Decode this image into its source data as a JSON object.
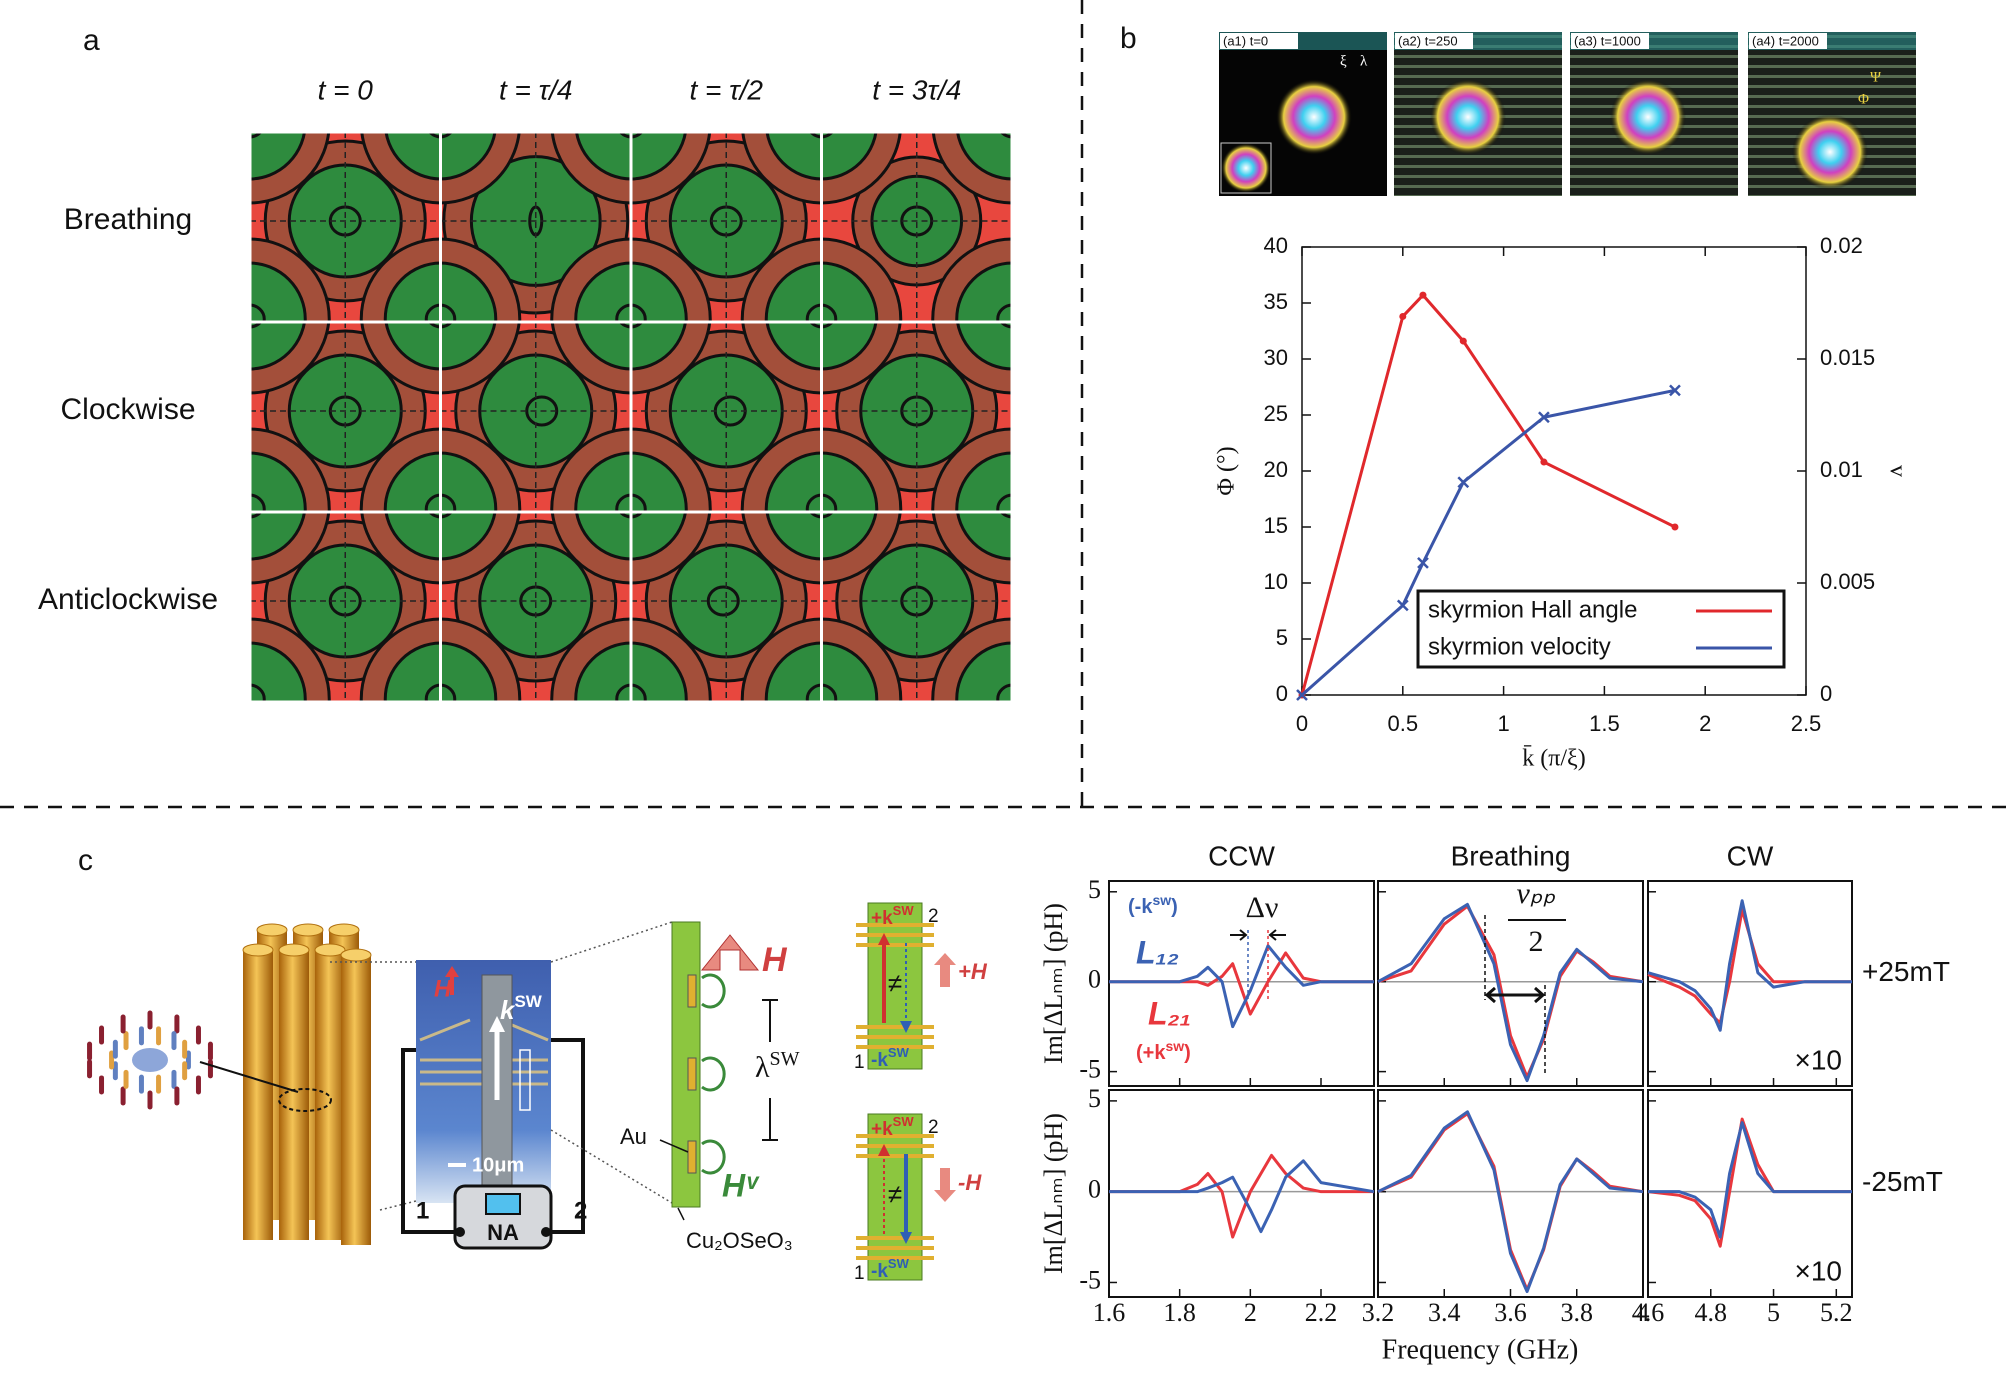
{
  "figure": {
    "a": {
      "label": "a",
      "columns": [
        "t = 0",
        "t = τ/4",
        "t = τ/2",
        "t = 3τ/4"
      ],
      "rows": [
        "Breathing",
        "Clockwise",
        "Anticlockwise"
      ]
    },
    "b": {
      "label": "b",
      "snapshots": [
        "(a1) t=0",
        "(a2) t=250",
        "(a3) t=1000",
        "(a4) t=2000"
      ],
      "snapshot_symbols": [
        "ξ",
        "λ",
        "Φ",
        "Ψ"
      ]
    },
    "c": {
      "label": "c",
      "device": {
        "field": "H",
        "wave": {
          "text": "k",
          "sup": "SW"
        },
        "scale": "10μm",
        "port1": "1",
        "port2": "2",
        "analyzer": "NA"
      },
      "strip": {
        "field": "H",
        "wavelength": {
          "text": "λ",
          "sup": "SW"
        },
        "electrode": "Au",
        "field_v": "Hᵛ",
        "sample": "Cu₂OSeO₃"
      },
      "schemes": [
        {
          "plus": {
            "text": "+k",
            "sup": "SW"
          },
          "minus": {
            "text": "-k",
            "sup": "SW"
          },
          "port2": "2",
          "port1": "1",
          "neq": "≠",
          "field": "+H"
        },
        {
          "plus": {
            "text": "+k",
            "sup": "SW"
          },
          "minus": {
            "text": "-k",
            "sup": "SW"
          },
          "port2": "2",
          "port1": "1",
          "neq": "≠",
          "field": "-H"
        }
      ],
      "spectrum_labels": {
        "minus": {
          "text": "(-k",
          "sup": "sw",
          "end": ")"
        },
        "L12": "L₁₂",
        "L21": "L₂₁",
        "plus": {
          "text": "(+k",
          "sup": "sw",
          "end": ")"
        },
        "splitting": "Δν",
        "width": {
          "num": "νₚₚ",
          "den": "2"
        }
      }
    }
  },
  "chart_data": [
    {
      "type": "line",
      "xlabel": "k̄ (π/ξ)",
      "ylabel": "Φ (°)",
      "y2label": "v",
      "x": [
        0,
        0.5,
        0.6,
        0.8,
        1.2,
        1.85
      ],
      "series": [
        {
          "name": "skyrmion Hall angle",
          "color": "#e0282c",
          "values": [
            0,
            33.8,
            35.7,
            31.6,
            20.8,
            15
          ]
        },
        {
          "name": "skyrmion velocity",
          "color": "#3a55a8",
          "axis": "y2",
          "values": [
            0,
            0.004,
            0.0059,
            0.0095,
            0.0124,
            0.0136
          ]
        }
      ],
      "xlim": [
        0,
        2.5
      ],
      "xticks": [
        0,
        0.5,
        1,
        1.5,
        2,
        2.5
      ],
      "ylim": [
        0,
        40
      ],
      "yticks": [
        0,
        5,
        10,
        15,
        20,
        25,
        30,
        35,
        40
      ],
      "y2lim": [
        0,
        0.02
      ],
      "y2ticks": [
        0,
        0.005,
        0.01,
        0.015,
        0.02
      ],
      "legend": "lower right"
    },
    {
      "type": "line",
      "title": "CCW",
      "ylabel": "Im[ΔLₙₘ] (pH)",
      "x": [
        1.6,
        1.8,
        1.85,
        1.88,
        1.92,
        1.95,
        2.0,
        2.05,
        2.1,
        2.15,
        2.2,
        2.35
      ],
      "series": [
        {
          "color": "#e8373d",
          "values": [
            0,
            0,
            0,
            -0.2,
            0.3,
            1.0,
            -1.8,
            0,
            1.6,
            0.2,
            0,
            0
          ]
        },
        {
          "color": "#3b62b3",
          "values": [
            0,
            0,
            0.3,
            0.8,
            0,
            -2.5,
            -0.5,
            2.0,
            0.8,
            -0.2,
            0,
            0
          ]
        }
      ],
      "xlim": [
        1.6,
        2.35
      ],
      "xticks": [
        1.6,
        1.8,
        2,
        2.2
      ],
      "ylim": [
        -5.8,
        5.6
      ],
      "yticks": [
        -5,
        0,
        5
      ]
    },
    {
      "type": "line",
      "title": "Breathing",
      "x": [
        3.2,
        3.3,
        3.4,
        3.47,
        3.55,
        3.6,
        3.65,
        3.7,
        3.75,
        3.8,
        3.85,
        3.9,
        4.0
      ],
      "series": [
        {
          "color": "#e8373d",
          "values": [
            0,
            0.6,
            3.2,
            4.2,
            1.5,
            -3,
            -5.3,
            -3.2,
            0.3,
            1.7,
            1.1,
            0.3,
            0
          ]
        },
        {
          "color": "#3b62b3",
          "values": [
            0,
            1,
            3.5,
            4.3,
            1,
            -3.5,
            -5.5,
            -3,
            0.5,
            1.8,
            1,
            0.2,
            0
          ]
        }
      ],
      "xlim": [
        3.2,
        4.0
      ],
      "xticks": [
        3.2,
        3.4,
        3.6,
        3.8,
        4
      ],
      "ylim": [
        -5.8,
        5.6
      ],
      "yticks": [
        -5,
        0,
        5
      ]
    },
    {
      "type": "line",
      "title": "CW",
      "annotation": "+25mT",
      "note": "×10",
      "x": [
        4.6,
        4.7,
        4.75,
        4.8,
        4.83,
        4.86,
        4.9,
        4.95,
        5.0,
        5.1,
        5.25
      ],
      "series": [
        {
          "color": "#e8373d",
          "values": [
            0.4,
            -0.3,
            -0.8,
            -1.8,
            -2.3,
            0,
            4,
            1,
            0,
            0,
            0
          ]
        },
        {
          "color": "#3b62b3",
          "values": [
            0.5,
            0,
            -0.5,
            -1.5,
            -2.7,
            1,
            4.5,
            0.5,
            -0.3,
            0,
            0
          ]
        }
      ],
      "xlim": [
        4.6,
        5.25
      ],
      "xticks": [
        4.6,
        4.8,
        5,
        5.2
      ],
      "ylim": [
        -5.8,
        5.6
      ],
      "yticks": [
        -5,
        0,
        5
      ]
    },
    {
      "type": "line",
      "ylabel": "Im[ΔLₙₘ] (pH)",
      "x": [
        1.6,
        1.8,
        1.85,
        1.88,
        1.92,
        1.95,
        2.0,
        2.03,
        2.06,
        2.1,
        2.15,
        2.2,
        2.35
      ],
      "series": [
        {
          "color": "#e8373d",
          "values": [
            0,
            0,
            0.4,
            1.0,
            0,
            -2.5,
            0,
            1,
            2.0,
            1,
            0.2,
            0,
            0
          ]
        },
        {
          "color": "#3b62b3",
          "values": [
            0,
            0,
            0,
            0.2,
            0.5,
            0.8,
            -1,
            -2.2,
            -1,
            0.8,
            1.7,
            0.5,
            0
          ]
        }
      ],
      "xlim": [
        1.6,
        2.35
      ],
      "xticks": [
        1.6,
        1.8,
        2,
        2.2
      ],
      "ylim": [
        -5.8,
        5.6
      ],
      "yticks": [
        -5,
        0,
        5
      ]
    },
    {
      "type": "line",
      "xlabel": "Frequency (GHz)",
      "x": [
        3.2,
        3.3,
        3.4,
        3.47,
        3.55,
        3.6,
        3.65,
        3.7,
        3.75,
        3.8,
        3.85,
        3.9,
        4.0
      ],
      "series": [
        {
          "color": "#e8373d",
          "values": [
            0,
            0.8,
            3.4,
            4.3,
            1.4,
            -3.2,
            -5.4,
            -3.2,
            0.3,
            1.8,
            1.1,
            0.3,
            0
          ]
        },
        {
          "color": "#3b62b3",
          "values": [
            0,
            0.9,
            3.5,
            4.4,
            1.2,
            -3.4,
            -5.5,
            -3.1,
            0.4,
            1.8,
            1,
            0.2,
            0
          ]
        }
      ],
      "xlim": [
        3.2,
        4.0
      ],
      "xticks": [
        3.2,
        3.4,
        3.6,
        3.8,
        4
      ],
      "ylim": [
        -5.8,
        5.6
      ],
      "yticks": [
        -5,
        0,
        5
      ]
    },
    {
      "type": "line",
      "annotation": "-25mT",
      "note": "×10",
      "x": [
        4.6,
        4.7,
        4.75,
        4.8,
        4.83,
        4.86,
        4.9,
        4.95,
        5.0,
        5.1,
        5.25
      ],
      "series": [
        {
          "color": "#e8373d",
          "values": [
            0,
            -0.2,
            -0.5,
            -1.5,
            -3,
            0,
            4,
            1.5,
            0,
            0,
            0
          ]
        },
        {
          "color": "#3b62b3",
          "values": [
            0,
            0,
            -0.3,
            -1,
            -2.5,
            1,
            3.8,
            1,
            0,
            0,
            0
          ]
        }
      ],
      "xlim": [
        4.6,
        5.25
      ],
      "xticks": [
        4.6,
        4.8,
        5,
        5.2
      ],
      "ylim": [
        -5.8,
        5.6
      ],
      "yticks": [
        -5,
        0,
        5
      ]
    }
  ]
}
